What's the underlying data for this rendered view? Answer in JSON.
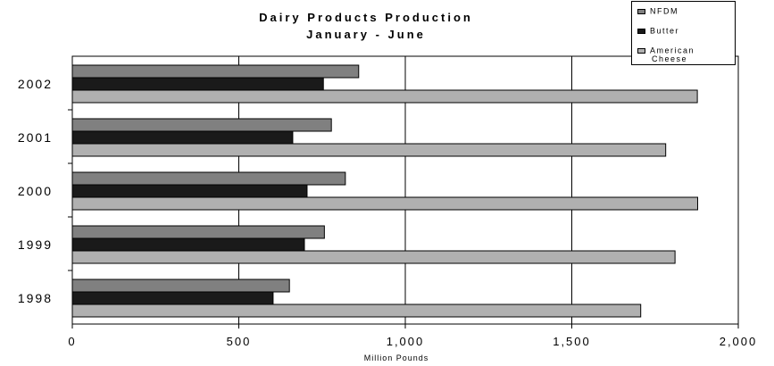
{
  "chart_data": {
    "type": "bar",
    "orientation": "horizontal",
    "title": "Dairy Products Production",
    "subtitle": "January - June",
    "xlabel": "Million Pounds",
    "ylabel": "",
    "xlim": [
      0,
      2000
    ],
    "x_ticks": [
      0,
      500,
      1000,
      1500,
      2000
    ],
    "x_tick_labels": [
      "0",
      "500",
      "1,000",
      "1,500",
      "2,000"
    ],
    "grid": "vertical",
    "legend_position": "top-right",
    "categories": [
      "2002",
      "2001",
      "2000",
      "1999",
      "1998"
    ],
    "series": [
      {
        "name": "NFDM",
        "color": "#808080",
        "values": [
          860,
          778,
          820,
          757,
          652
        ]
      },
      {
        "name": "Butter",
        "color": "#1a1a1a",
        "values": [
          754,
          662,
          705,
          697,
          603
        ]
      },
      {
        "name": "American Cheese",
        "color": "#b0b0b0",
        "values": [
          1877,
          1782,
          1878,
          1810,
          1707
        ]
      }
    ]
  },
  "legend": {
    "items": [
      {
        "label_lines": [
          "NFDM"
        ],
        "color": "#808080"
      },
      {
        "label_lines": [
          "Butter"
        ],
        "color": "#1a1a1a"
      },
      {
        "label_lines": [
          "American",
          "Cheese"
        ],
        "color": "#b0b0b0"
      }
    ]
  }
}
